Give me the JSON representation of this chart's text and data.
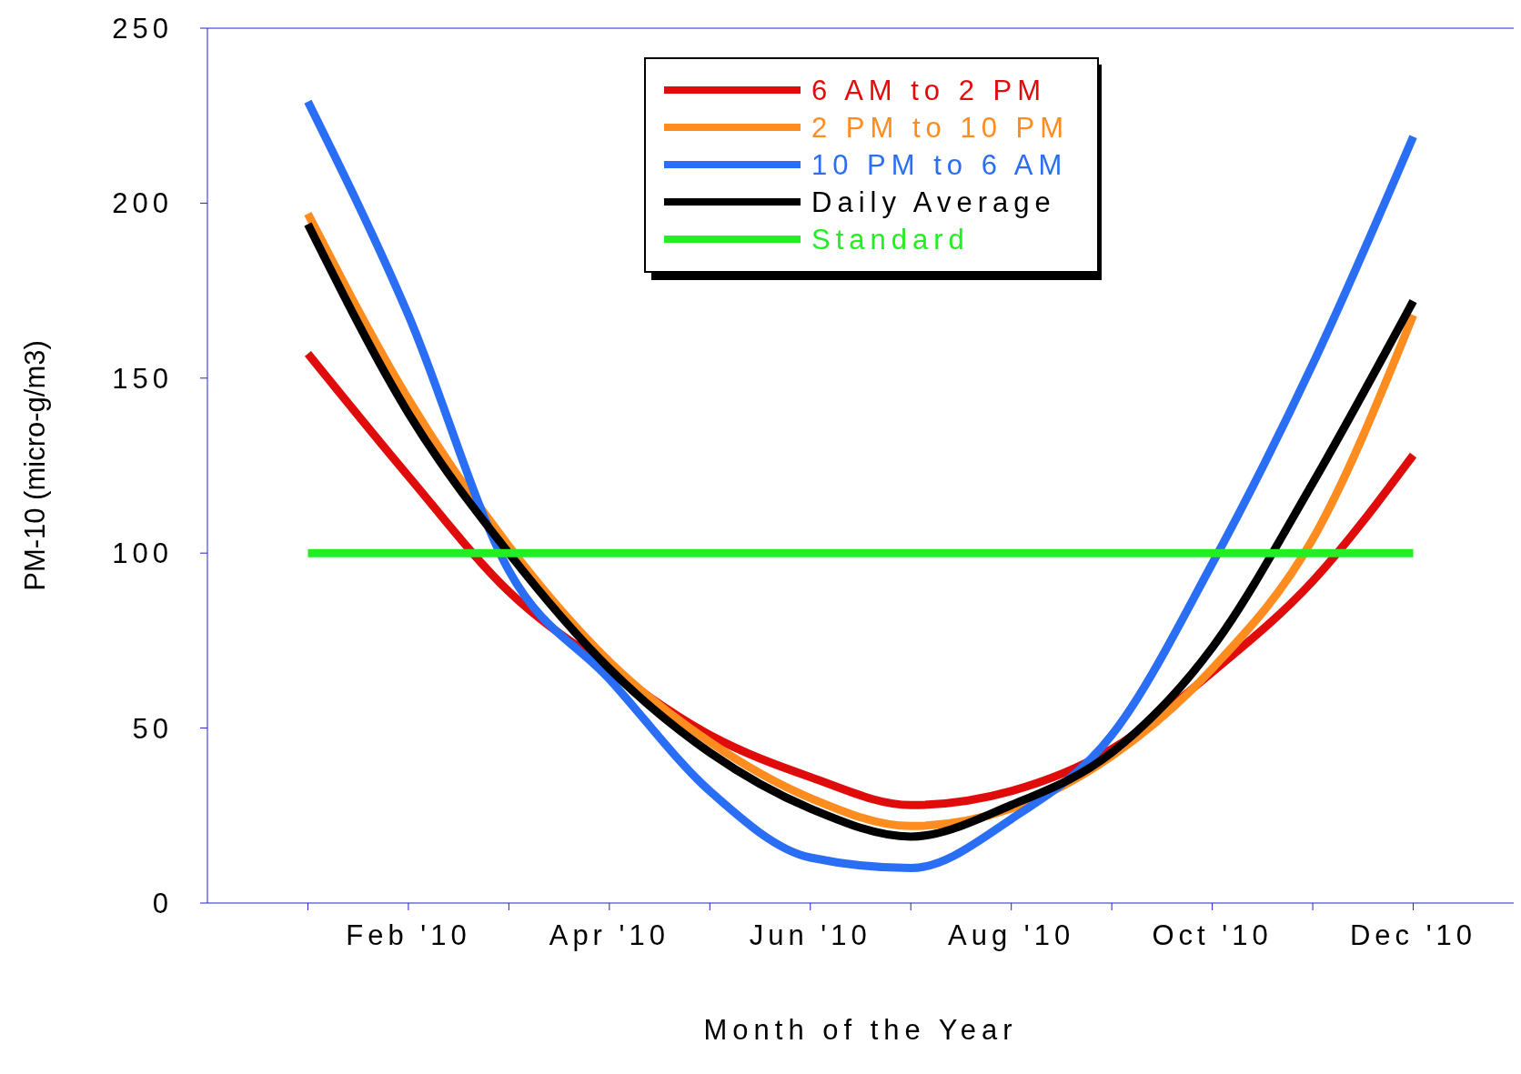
{
  "chart_data": {
    "type": "line",
    "xlabel": "Month of the Year",
    "ylabel": "PM-10 (micro-g/m3)",
    "categories": [
      null,
      "Feb '10",
      null,
      "Apr '10",
      null,
      "Jun '10",
      null,
      "Aug '10",
      null,
      "Oct '10",
      null,
      "Dec '10"
    ],
    "ylim": [
      0,
      250
    ],
    "yticks": [
      0,
      50,
      100,
      150,
      200,
      250
    ],
    "grid": false,
    "legend": "top",
    "marker": "none",
    "line_style": "solid",
    "series": [
      {
        "name": "6 AM to 2 PM",
        "color": "#e00c0c",
        "values": [
          157,
          122,
          89,
          67,
          48,
          36,
          28,
          32,
          44,
          66,
          92,
          128
        ]
      },
      {
        "name": "2 PM to 10 PM",
        "color": "#ff8c1e",
        "values": [
          197,
          144,
          102,
          69,
          46,
          30,
          22,
          27,
          42,
          67,
          104,
          168
        ]
      },
      {
        "name": "10 PM to 6 AM",
        "color": "#2a6ef5",
        "values": [
          229,
          168,
          95,
          64,
          32,
          13,
          10,
          24,
          48,
          97,
          154,
          219
        ]
      },
      {
        "name": "Daily Average",
        "color": "#000000",
        "values": [
          194,
          140,
          100,
          67,
          43,
          27,
          19,
          28,
          43,
          73,
          120,
          172
        ]
      },
      {
        "name": "Standard",
        "color": "#22ee22",
        "values": [
          100,
          100,
          100,
          100,
          100,
          100,
          100,
          100,
          100,
          100,
          100,
          100
        ]
      }
    ]
  }
}
